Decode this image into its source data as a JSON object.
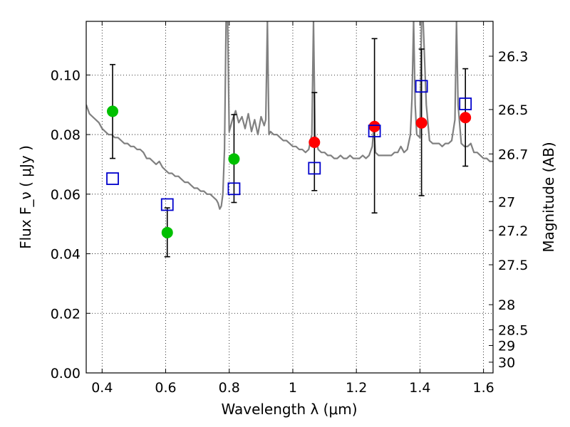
{
  "chart_data": {
    "type": "scatter",
    "title": "",
    "xlabel": "Wavelength  λ (μm)",
    "ylabel": "Flux  F_ν  ( μJy )",
    "ylabel_right": "Magnitude (AB)",
    "xlim": [
      0.35,
      1.63
    ],
    "ylim": [
      0.0,
      0.118
    ],
    "grid": true,
    "x_ticks": [
      0.4,
      0.6,
      0.8,
      1.0,
      1.2,
      1.4,
      1.6
    ],
    "x_tick_labels": [
      "0.4",
      "0.6",
      "0.8",
      "1",
      "1.2",
      "1.4",
      "1.6"
    ],
    "y_ticks": [
      0.0,
      0.02,
      0.04,
      0.06,
      0.08,
      0.1
    ],
    "y_tick_labels": [
      "0.00",
      "0.02",
      "0.04",
      "0.06",
      "0.08",
      "0.10"
    ],
    "right_axis_ticks": [
      {
        "label": "26.3",
        "flux": 0.1063
      },
      {
        "label": "26.5",
        "flux": 0.0884
      },
      {
        "label": "26.7",
        "flux": 0.0735
      },
      {
        "label": "27",
        "flux": 0.0575
      },
      {
        "label": "27.2",
        "flux": 0.0478
      },
      {
        "label": "27.5",
        "flux": 0.0363
      },
      {
        "label": "28",
        "flux": 0.0229
      },
      {
        "label": "28.5",
        "flux": 0.0145
      },
      {
        "label": "29",
        "flux": 0.0092
      },
      {
        "label": "30",
        "flux": 0.0036
      }
    ],
    "series": [
      {
        "kind": "line",
        "color": "#808080",
        "points": [
          [
            0.35,
            0.09
          ],
          [
            0.36,
            0.087
          ],
          [
            0.37,
            0.086
          ],
          [
            0.38,
            0.085
          ],
          [
            0.39,
            0.084
          ],
          [
            0.4,
            0.082
          ],
          [
            0.41,
            0.081
          ],
          [
            0.42,
            0.08
          ],
          [
            0.43,
            0.08
          ],
          [
            0.44,
            0.079
          ],
          [
            0.45,
            0.079
          ],
          [
            0.46,
            0.078
          ],
          [
            0.47,
            0.077
          ],
          [
            0.48,
            0.077
          ],
          [
            0.49,
            0.076
          ],
          [
            0.5,
            0.076
          ],
          [
            0.51,
            0.075
          ],
          [
            0.52,
            0.075
          ],
          [
            0.53,
            0.074
          ],
          [
            0.54,
            0.072
          ],
          [
            0.55,
            0.072
          ],
          [
            0.56,
            0.071
          ],
          [
            0.57,
            0.07
          ],
          [
            0.58,
            0.071
          ],
          [
            0.59,
            0.069
          ],
          [
            0.6,
            0.068
          ],
          [
            0.61,
            0.067
          ],
          [
            0.62,
            0.067
          ],
          [
            0.63,
            0.066
          ],
          [
            0.64,
            0.066
          ],
          [
            0.65,
            0.065
          ],
          [
            0.66,
            0.064
          ],
          [
            0.67,
            0.064
          ],
          [
            0.68,
            0.063
          ],
          [
            0.69,
            0.062
          ],
          [
            0.7,
            0.062
          ],
          [
            0.71,
            0.061
          ],
          [
            0.72,
            0.061
          ],
          [
            0.73,
            0.06
          ],
          [
            0.74,
            0.06
          ],
          [
            0.75,
            0.059
          ],
          [
            0.76,
            0.058
          ],
          [
            0.765,
            0.057
          ],
          [
            0.77,
            0.055
          ],
          [
            0.775,
            0.056
          ],
          [
            0.78,
            0.06
          ],
          [
            0.785,
            0.075
          ],
          [
            0.79,
            0.118
          ],
          [
            0.795,
            0.118
          ],
          [
            0.8,
            0.081
          ],
          [
            0.81,
            0.085
          ],
          [
            0.82,
            0.088
          ],
          [
            0.83,
            0.084
          ],
          [
            0.84,
            0.086
          ],
          [
            0.85,
            0.082
          ],
          [
            0.86,
            0.087
          ],
          [
            0.87,
            0.081
          ],
          [
            0.88,
            0.085
          ],
          [
            0.89,
            0.08
          ],
          [
            0.9,
            0.086
          ],
          [
            0.91,
            0.083
          ],
          [
            0.915,
            0.085
          ],
          [
            0.92,
            0.118
          ],
          [
            0.925,
            0.08
          ],
          [
            0.93,
            0.081
          ],
          [
            0.94,
            0.08
          ],
          [
            0.95,
            0.08
          ],
          [
            0.96,
            0.079
          ],
          [
            0.97,
            0.078
          ],
          [
            0.98,
            0.078
          ],
          [
            0.99,
            0.077
          ],
          [
            1.0,
            0.076
          ],
          [
            1.01,
            0.076
          ],
          [
            1.02,
            0.075
          ],
          [
            1.03,
            0.075
          ],
          [
            1.04,
            0.074
          ],
          [
            1.05,
            0.075
          ],
          [
            1.06,
            0.08
          ],
          [
            1.065,
            0.118
          ],
          [
            1.07,
            0.08
          ],
          [
            1.08,
            0.075
          ],
          [
            1.09,
            0.074
          ],
          [
            1.1,
            0.074
          ],
          [
            1.11,
            0.073
          ],
          [
            1.12,
            0.073
          ],
          [
            1.13,
            0.072
          ],
          [
            1.14,
            0.072
          ],
          [
            1.15,
            0.073
          ],
          [
            1.16,
            0.072
          ],
          [
            1.17,
            0.072
          ],
          [
            1.18,
            0.073
          ],
          [
            1.19,
            0.072
          ],
          [
            1.2,
            0.072
          ],
          [
            1.21,
            0.072
          ],
          [
            1.22,
            0.073
          ],
          [
            1.23,
            0.072
          ],
          [
            1.24,
            0.073
          ],
          [
            1.25,
            0.076
          ],
          [
            1.255,
            0.083
          ],
          [
            1.26,
            0.074
          ],
          [
            1.27,
            0.073
          ],
          [
            1.28,
            0.073
          ],
          [
            1.29,
            0.073
          ],
          [
            1.3,
            0.073
          ],
          [
            1.31,
            0.073
          ],
          [
            1.32,
            0.074
          ],
          [
            1.33,
            0.074
          ],
          [
            1.34,
            0.076
          ],
          [
            1.35,
            0.074
          ],
          [
            1.36,
            0.075
          ],
          [
            1.37,
            0.08
          ],
          [
            1.375,
            0.092
          ],
          [
            1.38,
            0.118
          ],
          [
            1.385,
            0.09
          ],
          [
            1.39,
            0.08
          ],
          [
            1.4,
            0.079
          ],
          [
            1.405,
            0.118
          ],
          [
            1.41,
            0.118
          ],
          [
            1.42,
            0.09
          ],
          [
            1.43,
            0.078
          ],
          [
            1.44,
            0.077
          ],
          [
            1.45,
            0.077
          ],
          [
            1.46,
            0.077
          ],
          [
            1.47,
            0.076
          ],
          [
            1.48,
            0.077
          ],
          [
            1.49,
            0.077
          ],
          [
            1.5,
            0.078
          ],
          [
            1.51,
            0.085
          ],
          [
            1.515,
            0.118
          ],
          [
            1.52,
            0.09
          ],
          [
            1.53,
            0.077
          ],
          [
            1.54,
            0.076
          ],
          [
            1.55,
            0.076
          ],
          [
            1.56,
            0.077
          ],
          [
            1.57,
            0.074
          ],
          [
            1.58,
            0.074
          ],
          [
            1.59,
            0.073
          ],
          [
            1.6,
            0.072
          ],
          [
            1.61,
            0.072
          ],
          [
            1.62,
            0.071
          ],
          [
            1.63,
            0.071
          ]
        ]
      },
      {
        "kind": "errorbar",
        "color": "#000000",
        "points": [
          {
            "x": 0.433,
            "y": 0.0878,
            "lo": 0.072,
            "hi": 0.1035
          },
          {
            "x": 0.605,
            "y": 0.0471,
            "lo": 0.039,
            "hi": 0.0554
          },
          {
            "x": 0.815,
            "y": 0.0718,
            "lo": 0.0572,
            "hi": 0.0867
          },
          {
            "x": 1.068,
            "y": 0.0774,
            "lo": 0.0612,
            "hi": 0.0941
          },
          {
            "x": 1.257,
            "y": 0.0827,
            "lo": 0.0537,
            "hi": 0.1122
          },
          {
            "x": 1.405,
            "y": 0.0839,
            "lo": 0.0595,
            "hi": 0.1087
          },
          {
            "x": 1.543,
            "y": 0.0857,
            "lo": 0.0694,
            "hi": 0.1021
          }
        ]
      },
      {
        "kind": "circle",
        "points": [
          {
            "x": 0.433,
            "y": 0.0878,
            "color": "#00c000"
          },
          {
            "x": 0.605,
            "y": 0.0471,
            "color": "#00c000"
          },
          {
            "x": 0.815,
            "y": 0.0718,
            "color": "#00c000"
          },
          {
            "x": 1.068,
            "y": 0.0774,
            "color": "#ff0000"
          },
          {
            "x": 1.257,
            "y": 0.0827,
            "color": "#ff0000"
          },
          {
            "x": 1.405,
            "y": 0.0839,
            "color": "#ff0000"
          },
          {
            "x": 1.543,
            "y": 0.0857,
            "color": "#ff0000"
          }
        ]
      },
      {
        "kind": "square",
        "color": "#0000cc",
        "points": [
          {
            "x": 0.433,
            "y": 0.0652
          },
          {
            "x": 0.605,
            "y": 0.0565
          },
          {
            "x": 0.815,
            "y": 0.0618
          },
          {
            "x": 1.068,
            "y": 0.0687
          },
          {
            "x": 1.257,
            "y": 0.0812
          },
          {
            "x": 1.405,
            "y": 0.0962
          },
          {
            "x": 1.543,
            "y": 0.0903
          }
        ]
      }
    ]
  }
}
